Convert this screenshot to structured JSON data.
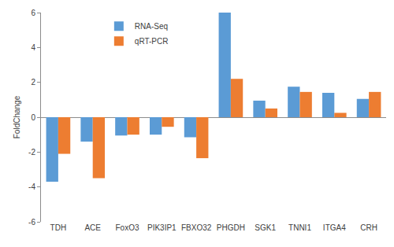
{
  "chart_data": {
    "type": "bar",
    "y_label": "FoldChange",
    "categories": [
      "TDH",
      "ACE",
      "FoxO3",
      "PIK3IP1",
      "FBXO32",
      "PHGDH",
      "SGK1",
      "TNNI1",
      "ITGA4",
      "CRH"
    ],
    "series": [
      {
        "name": "RNA-Seq",
        "color": "#5b9bd5",
        "values": [
          -3.7,
          -1.4,
          -1.05,
          -1.0,
          -1.15,
          6.0,
          0.95,
          1.75,
          1.4,
          1.05
        ]
      },
      {
        "name": "qRT-PCR",
        "color": "#ed7d31",
        "values": [
          -2.1,
          -3.5,
          -1.0,
          -0.55,
          -2.35,
          2.2,
          0.5,
          1.45,
          0.25,
          1.45
        ]
      }
    ],
    "ylim": [
      -6,
      6
    ],
    "yticks": [
      -6,
      -4,
      -2,
      0,
      2,
      4,
      6
    ],
    "grid": false,
    "legend": "upper left"
  }
}
